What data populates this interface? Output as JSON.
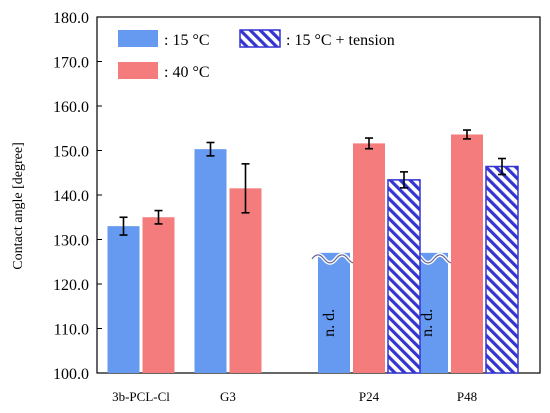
{
  "chart_data": {
    "type": "bar",
    "categories": [
      "3b-PCL-Cl",
      "G3",
      "P24",
      "P48"
    ],
    "ylabel": "Contact angle [degree]",
    "ylim": [
      100.0,
      180.0
    ],
    "yticks": [
      "100.0",
      "110.0",
      "120.0",
      "130.0",
      "140.0",
      "150.0",
      "160.0",
      "170.0",
      "180.0"
    ],
    "grid": false,
    "legend_position": "top",
    "series": [
      {
        "name": ": 15 °C",
        "color": "#6699f0",
        "pattern": "solid",
        "values": [
          133.0,
          150.3,
          127.0,
          127.0
        ],
        "errors": [
          2.0,
          1.5,
          null,
          null
        ],
        "labels": [
          "",
          "",
          "n. d.",
          "n. d."
        ]
      },
      {
        "name": ": 40 °C",
        "color": "#f47c7c",
        "pattern": "solid",
        "values": [
          135.0,
          141.5,
          151.6,
          153.6
        ],
        "errors": [
          1.5,
          5.5,
          1.2,
          1.0
        ],
        "labels": [
          "",
          "",
          "",
          ""
        ]
      },
      {
        "name": ": 15 °C + tension",
        "color": "#3434d0",
        "pattern": "hatch",
        "values": [
          null,
          null,
          143.4,
          146.4
        ],
        "errors": [
          null,
          null,
          1.8,
          1.8
        ],
        "labels": [
          "",
          "",
          "",
          ""
        ]
      }
    ]
  }
}
